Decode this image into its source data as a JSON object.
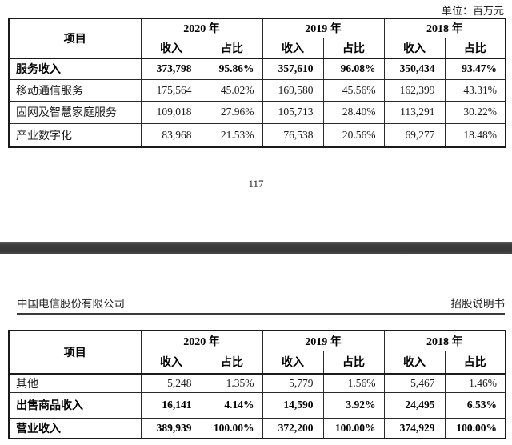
{
  "page1": {
    "unit_label": "单位：百万元",
    "page_number": "117",
    "table": {
      "header": {
        "item": "项目",
        "year_2020": "2020 年",
        "year_2019": "2019 年",
        "year_2018": "2018 年",
        "revenue": "收入",
        "share": "占比"
      },
      "rows": [
        {
          "label": "服务收入",
          "bold": true,
          "values": [
            "373,798",
            "95.86%",
            "357,610",
            "96.08%",
            "350,434",
            "93.47%"
          ]
        },
        {
          "label": "移动通信服务",
          "bold": false,
          "values": [
            "175,564",
            "45.02%",
            "169,580",
            "45.56%",
            "162,399",
            "43.31%"
          ]
        },
        {
          "label": "固网及智慧家庭服务",
          "bold": false,
          "values": [
            "109,018",
            "27.96%",
            "105,713",
            "28.40%",
            "113,291",
            "30.22%"
          ]
        },
        {
          "label": "产业数字化",
          "bold": false,
          "values": [
            "83,968",
            "21.53%",
            "76,538",
            "20.56%",
            "69,277",
            "18.48%"
          ]
        }
      ]
    }
  },
  "page2": {
    "header_left": "中国电信股份有限公司",
    "header_right": "招股说明书",
    "table": {
      "header": {
        "item": "项目",
        "year_2020": "2020 年",
        "year_2019": "2019 年",
        "year_2018": "2018 年",
        "revenue": "收入",
        "share": "占比"
      },
      "rows": [
        {
          "label": "其他",
          "bold": false,
          "values": [
            "5,248",
            "1.35%",
            "5,779",
            "1.56%",
            "5,467",
            "1.46%"
          ]
        },
        {
          "label": "出售商品收入",
          "bold": true,
          "values": [
            "16,141",
            "4.14%",
            "14,590",
            "3.92%",
            "24,495",
            "6.53%"
          ]
        },
        {
          "label": "营业收入",
          "bold": true,
          "values": [
            "389,939",
            "100.00%",
            "372,200",
            "100.00%",
            "374,929",
            "100.00%"
          ]
        }
      ]
    }
  }
}
